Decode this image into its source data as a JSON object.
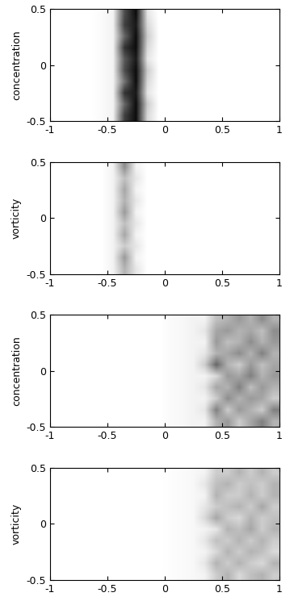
{
  "chart_data": [
    {
      "type": "heatmap",
      "ylabel": "concentration",
      "xlim": [
        -1,
        1
      ],
      "ylim": [
        -0.5,
        0.5
      ],
      "xticks": [
        -1,
        -0.5,
        0,
        0.5,
        1
      ],
      "yticks": [
        -0.5,
        0,
        0.5
      ],
      "cells": [
        [
          0,
          0,
          0,
          0,
          0.02,
          0.05,
          0.75,
          0.95,
          0.15,
          0,
          0,
          0,
          0,
          0,
          0,
          0,
          0,
          0,
          0,
          0
        ],
        [
          0,
          0,
          0,
          0,
          0.02,
          0.05,
          0.6,
          0.95,
          0.2,
          0,
          0,
          0,
          0,
          0,
          0,
          0,
          0,
          0,
          0,
          0
        ],
        [
          0,
          0,
          0,
          0,
          0.02,
          0.05,
          0.8,
          0.9,
          0.1,
          0,
          0,
          0,
          0,
          0,
          0,
          0,
          0,
          0,
          0,
          0
        ],
        [
          0,
          0,
          0,
          0,
          0.02,
          0.05,
          0.55,
          0.95,
          0.15,
          0,
          0,
          0,
          0,
          0,
          0,
          0,
          0,
          0,
          0,
          0
        ],
        [
          0,
          0,
          0,
          0,
          0.02,
          0.05,
          0.7,
          0.95,
          0.2,
          0,
          0,
          0,
          0,
          0,
          0,
          0,
          0,
          0,
          0,
          0
        ],
        [
          0,
          0,
          0,
          0,
          0.02,
          0.05,
          0.65,
          0.9,
          0.1,
          0,
          0,
          0,
          0,
          0,
          0,
          0,
          0,
          0,
          0,
          0
        ],
        [
          0,
          0,
          0,
          0,
          0.02,
          0.05,
          0.8,
          0.95,
          0.15,
          0,
          0,
          0,
          0,
          0,
          0,
          0,
          0,
          0,
          0,
          0
        ],
        [
          0,
          0,
          0,
          0,
          0.02,
          0.05,
          0.6,
          0.95,
          0.2,
          0,
          0,
          0,
          0,
          0,
          0,
          0,
          0,
          0,
          0,
          0
        ],
        [
          0,
          0,
          0,
          0,
          0.02,
          0.05,
          0.75,
          0.9,
          0.15,
          0,
          0,
          0,
          0,
          0,
          0,
          0,
          0,
          0,
          0,
          0
        ],
        [
          0,
          0,
          0,
          0,
          0.02,
          0.05,
          0.7,
          0.95,
          0.1,
          0,
          0,
          0,
          0,
          0,
          0,
          0,
          0,
          0,
          0,
          0
        ]
      ]
    },
    {
      "type": "heatmap",
      "ylabel": "vorticity",
      "xlim": [
        -1,
        1
      ],
      "ylim": [
        -0.5,
        0.5
      ],
      "xticks": [
        -1,
        -0.5,
        0,
        0.5,
        1
      ],
      "yticks": [
        -0.5,
        0,
        0.5
      ],
      "cells": [
        [
          0,
          0,
          0,
          0,
          0,
          0.05,
          0.3,
          0.1,
          0,
          0,
          0,
          0,
          0,
          0,
          0,
          0,
          0,
          0,
          0,
          0
        ],
        [
          0,
          0,
          0,
          0,
          0,
          0.05,
          0.4,
          0.05,
          0,
          0,
          0,
          0,
          0,
          0,
          0,
          0,
          0,
          0,
          0,
          0
        ],
        [
          0,
          0,
          0,
          0,
          0,
          0.05,
          0.2,
          0.1,
          0,
          0,
          0,
          0,
          0,
          0,
          0,
          0,
          0,
          0,
          0,
          0
        ],
        [
          0,
          0,
          0,
          0,
          0,
          0.05,
          0.35,
          0.05,
          0,
          0,
          0,
          0,
          0,
          0,
          0,
          0,
          0,
          0,
          0,
          0
        ],
        [
          0,
          0,
          0,
          0,
          0,
          0.05,
          0.25,
          0.1,
          0,
          0,
          0,
          0,
          0,
          0,
          0,
          0,
          0,
          0,
          0,
          0
        ],
        [
          0,
          0,
          0,
          0,
          0,
          0.05,
          0.4,
          0.05,
          0,
          0,
          0,
          0,
          0,
          0,
          0,
          0,
          0,
          0,
          0,
          0
        ],
        [
          0,
          0,
          0,
          0,
          0,
          0.05,
          0.3,
          0.1,
          0,
          0,
          0,
          0,
          0,
          0,
          0,
          0,
          0,
          0,
          0,
          0
        ],
        [
          0,
          0,
          0,
          0,
          0,
          0.05,
          0.35,
          0.05,
          0,
          0,
          0,
          0,
          0,
          0,
          0,
          0,
          0,
          0,
          0,
          0
        ],
        [
          0,
          0,
          0,
          0,
          0,
          0.05,
          0.25,
          0.1,
          0,
          0,
          0,
          0,
          0,
          0,
          0,
          0,
          0,
          0,
          0,
          0
        ],
        [
          0,
          0,
          0,
          0,
          0,
          0.05,
          0.45,
          0.05,
          0,
          0,
          0,
          0,
          0,
          0,
          0,
          0,
          0,
          0,
          0,
          0
        ]
      ]
    },
    {
      "type": "heatmap",
      "ylabel": "concentration",
      "xlim": [
        -1,
        1
      ],
      "ylim": [
        -0.5,
        0.5
      ],
      "xticks": [
        -1,
        -0.5,
        0,
        0.5,
        1
      ],
      "yticks": [
        -0.5,
        0,
        0.5
      ],
      "cells": [
        [
          0,
          0,
          0,
          0,
          0,
          0,
          0,
          0,
          0,
          0,
          0.02,
          0.03,
          0.05,
          0.05,
          0.3,
          0.4,
          0.2,
          0.35,
          0.5,
          0.3
        ],
        [
          0,
          0,
          0,
          0,
          0,
          0,
          0,
          0,
          0,
          0,
          0.02,
          0.03,
          0.05,
          0.1,
          0.5,
          0.2,
          0.4,
          0.3,
          0.2,
          0.5
        ],
        [
          0,
          0,
          0,
          0,
          0,
          0,
          0,
          0,
          0,
          0,
          0.02,
          0.03,
          0.05,
          0.05,
          0.2,
          0.45,
          0.3,
          0.4,
          0.35,
          0.2
        ],
        [
          0,
          0,
          0,
          0,
          0,
          0,
          0,
          0,
          0,
          0,
          0.02,
          0.03,
          0.05,
          0.1,
          0.35,
          0.3,
          0.5,
          0.25,
          0.4,
          0.3
        ],
        [
          0,
          0,
          0,
          0,
          0,
          0,
          0,
          0,
          0,
          0,
          0.02,
          0.03,
          0.05,
          0.05,
          0.15,
          0.4,
          0.35,
          0.5,
          0.3,
          0.4
        ],
        [
          0,
          0,
          0,
          0,
          0,
          0,
          0,
          0,
          0,
          0,
          0.02,
          0.03,
          0.05,
          0.2,
          0.6,
          0.3,
          0.2,
          0.4,
          0.25,
          0.35
        ],
        [
          0,
          0,
          0,
          0,
          0,
          0,
          0,
          0,
          0,
          0,
          0.02,
          0.03,
          0.05,
          0.1,
          0.3,
          0.35,
          0.45,
          0.3,
          0.5,
          0.3
        ],
        [
          0,
          0,
          0,
          0,
          0,
          0,
          0,
          0,
          0,
          0,
          0.02,
          0.03,
          0.05,
          0.05,
          0.4,
          0.25,
          0.3,
          0.45,
          0.3,
          0.4
        ],
        [
          0,
          0,
          0,
          0,
          0,
          0,
          0,
          0,
          0,
          0,
          0.02,
          0.03,
          0.05,
          0.1,
          0.35,
          0.4,
          0.3,
          0.35,
          0.25,
          0.45
        ],
        [
          0,
          0,
          0,
          0,
          0,
          0,
          0,
          0,
          0,
          0,
          0.02,
          0.03,
          0.05,
          0.05,
          0.25,
          0.3,
          0.4,
          0.3,
          0.45,
          0.3
        ]
      ]
    },
    {
      "type": "heatmap",
      "ylabel": "vorticity",
      "xlim": [
        -1,
        1
      ],
      "ylim": [
        -0.5,
        0.5
      ],
      "xticks": [
        -1,
        -0.5,
        0,
        0.5,
        1
      ],
      "yticks": [
        -0.5,
        0,
        0.5
      ],
      "cells": [
        [
          0,
          0,
          0,
          0,
          0,
          0,
          0,
          0,
          0,
          0,
          0.01,
          0.02,
          0.03,
          0.05,
          0.2,
          0.3,
          0.15,
          0.25,
          0.3,
          0.2
        ],
        [
          0,
          0,
          0,
          0,
          0,
          0,
          0,
          0,
          0,
          0,
          0.01,
          0.02,
          0.03,
          0.1,
          0.3,
          0.2,
          0.3,
          0.2,
          0.15,
          0.3
        ],
        [
          0,
          0,
          0,
          0,
          0,
          0,
          0,
          0,
          0,
          0,
          0.01,
          0.02,
          0.03,
          0.05,
          0.15,
          0.3,
          0.2,
          0.3,
          0.25,
          0.15
        ],
        [
          0,
          0,
          0,
          0,
          0,
          0,
          0,
          0,
          0,
          0,
          0.01,
          0.02,
          0.03,
          0.1,
          0.25,
          0.2,
          0.3,
          0.2,
          0.3,
          0.2
        ],
        [
          0,
          0,
          0,
          0,
          0,
          0,
          0,
          0,
          0,
          0,
          0.01,
          0.02,
          0.03,
          0.05,
          0.1,
          0.3,
          0.25,
          0.35,
          0.2,
          0.3
        ],
        [
          0,
          0,
          0,
          0,
          0,
          0,
          0,
          0,
          0,
          0,
          0.01,
          0.02,
          0.03,
          0.15,
          0.35,
          0.2,
          0.15,
          0.3,
          0.2,
          0.25
        ],
        [
          0,
          0,
          0,
          0,
          0,
          0,
          0,
          0,
          0,
          0,
          0.01,
          0.02,
          0.03,
          0.1,
          0.2,
          0.25,
          0.3,
          0.2,
          0.35,
          0.2
        ],
        [
          0,
          0,
          0,
          0,
          0,
          0,
          0,
          0,
          0,
          0,
          0.01,
          0.02,
          0.03,
          0.05,
          0.3,
          0.2,
          0.2,
          0.3,
          0.2,
          0.3
        ],
        [
          0,
          0,
          0,
          0,
          0,
          0,
          0,
          0,
          0,
          0,
          0.01,
          0.02,
          0.03,
          0.1,
          0.25,
          0.3,
          0.2,
          0.25,
          0.2,
          0.3
        ],
        [
          0,
          0,
          0,
          0,
          0,
          0,
          0,
          0,
          0,
          0,
          0.01,
          0.02,
          0.03,
          0.05,
          0.2,
          0.2,
          0.3,
          0.2,
          0.3,
          0.2
        ]
      ]
    }
  ]
}
